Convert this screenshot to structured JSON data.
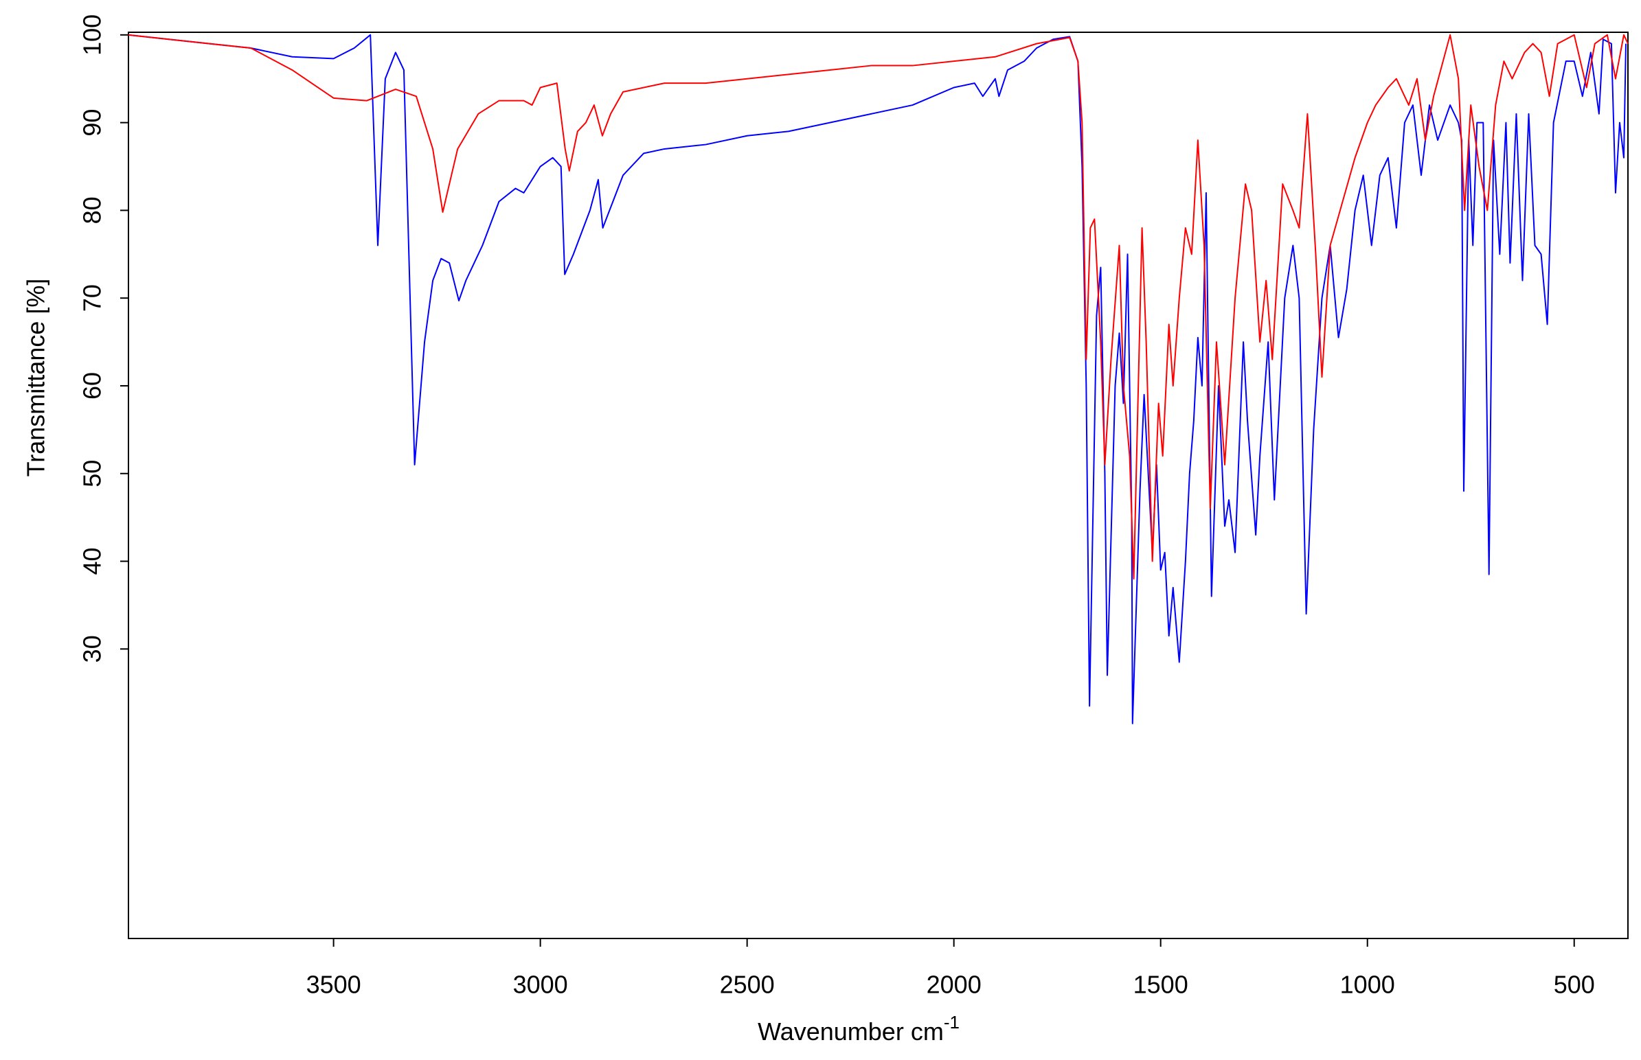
{
  "chart_data": {
    "type": "line",
    "x_label": "Wavenumber cm",
    "x_label_superscript": "-1",
    "y_label": "Transmittance [%]",
    "xlim": [
      3996,
      370
    ],
    "xticks": [
      3500,
      3000,
      2500,
      2000,
      1500,
      1000,
      500
    ],
    "ylim": [
      -3,
      100.3
    ],
    "yticks": [
      30,
      40,
      50,
      60,
      70,
      80,
      90,
      100
    ],
    "series": [
      {
        "color": "#0000ff",
        "x": [
          3996,
          3800,
          3700,
          3600,
          3500,
          3450,
          3411,
          3393,
          3375,
          3350,
          3330,
          3304,
          3280,
          3260,
          3240,
          3220,
          3197,
          3180,
          3140,
          3100,
          3060,
          3040,
          3000,
          2970,
          2950,
          2941,
          2920,
          2880,
          2860,
          2849,
          2800,
          2750,
          2700,
          2600,
          2500,
          2400,
          2300,
          2200,
          2100,
          2000,
          1950,
          1930,
          1900,
          1891,
          1870,
          1830,
          1800,
          1760,
          1720,
          1700,
          1690,
          1680,
          1672,
          1655,
          1645,
          1635,
          1629,
          1610,
          1600,
          1590,
          1580,
          1570,
          1568,
          1550,
          1540,
          1530,
          1520,
          1510,
          1500,
          1490,
          1480,
          1470,
          1455,
          1440,
          1430,
          1420,
          1410,
          1400,
          1390,
          1377,
          1360,
          1345,
          1335,
          1320,
          1300,
          1290,
          1270,
          1260,
          1240,
          1225,
          1200,
          1180,
          1165,
          1148,
          1130,
          1110,
          1090,
          1070,
          1050,
          1030,
          1010,
          990,
          970,
          950,
          930,
          910,
          890,
          870,
          850,
          830,
          800,
          780,
          772,
          767,
          755,
          745,
          735,
          720,
          706,
          695,
          680,
          665,
          655,
          640,
          625,
          610,
          595,
          580,
          565,
          550,
          520,
          500,
          480,
          460,
          440,
          430,
          410,
          400,
          390,
          380,
          375
        ],
        "values": [
          100,
          99,
          98.5,
          97.5,
          97.3,
          98.5,
          100,
          76,
          95,
          98,
          96,
          51,
          65,
          72,
          74.5,
          74,
          69.7,
          72,
          76,
          81,
          82.5,
          82,
          85,
          86,
          85,
          72.7,
          75,
          80,
          83.5,
          78,
          84,
          86.5,
          87,
          87.5,
          88.5,
          89,
          90,
          91,
          92,
          94,
          94.5,
          93,
          95,
          93,
          96,
          97,
          98.5,
          99.5,
          99.8,
          97,
          85,
          60,
          23.5,
          68,
          73.5,
          50,
          27,
          60,
          66,
          58,
          75,
          45,
          21.5,
          48,
          59,
          50,
          41,
          51,
          39,
          41,
          31.5,
          37,
          28.5,
          40,
          50,
          56,
          65.5,
          60,
          82,
          36,
          60,
          44,
          47,
          41,
          65,
          56,
          43,
          52,
          65,
          47,
          70,
          76,
          70,
          34,
          55,
          70,
          76,
          65.5,
          71,
          80,
          84,
          76,
          84,
          86,
          78,
          90,
          92,
          84,
          92,
          88,
          92,
          90,
          88,
          48,
          88,
          76,
          90,
          90,
          38.5,
          88,
          75,
          90,
          74,
          91,
          72,
          91,
          76,
          75,
          67,
          90,
          97,
          97,
          93,
          98,
          91,
          99.5,
          99,
          82,
          90,
          86,
          99
        ]
      },
      {
        "color": "#ff0000",
        "x": [
          3996,
          3800,
          3700,
          3600,
          3500,
          3420,
          3350,
          3300,
          3260,
          3236,
          3200,
          3150,
          3100,
          3040,
          3020,
          3000,
          2960,
          2940,
          2930,
          2910,
          2890,
          2870,
          2850,
          2830,
          2800,
          2700,
          2600,
          2500,
          2400,
          2300,
          2200,
          2100,
          2000,
          1900,
          1800,
          1720,
          1700,
          1690,
          1680,
          1670,
          1660,
          1645,
          1635,
          1620,
          1600,
          1590,
          1575,
          1565,
          1545,
          1535,
          1520,
          1505,
          1495,
          1480,
          1470,
          1455,
          1440,
          1425,
          1410,
          1395,
          1380,
          1365,
          1345,
          1320,
          1295,
          1280,
          1260,
          1245,
          1230,
          1205,
          1180,
          1165,
          1145,
          1125,
          1110,
          1090,
          1060,
          1030,
          1000,
          980,
          950,
          930,
          900,
          880,
          860,
          840,
          800,
          780,
          765,
          750,
          730,
          710,
          690,
          670,
          650,
          620,
          600,
          580,
          560,
          540,
          500,
          470,
          450,
          420,
          400,
          380,
          370
        ],
        "values": [
          100,
          99,
          98.5,
          96,
          92.8,
          92.5,
          93.8,
          93,
          87,
          79.8,
          87,
          91,
          92.5,
          92.5,
          92,
          94,
          94.5,
          87,
          84.5,
          89,
          90,
          92,
          88.5,
          91,
          93.5,
          94.5,
          94.5,
          95,
          95.5,
          96,
          96.5,
          96.5,
          97,
          97.5,
          99,
          99.7,
          97,
          90,
          63,
          78,
          79,
          65,
          51,
          63,
          76,
          60,
          52,
          38,
          78,
          65,
          40,
          58,
          52,
          67,
          60,
          70,
          78,
          75,
          88,
          76,
          46,
          65,
          51,
          70,
          83,
          80,
          65,
          72,
          63,
          83,
          80,
          78,
          91,
          75,
          61,
          76,
          81,
          86,
          90,
          92,
          94,
          95,
          92,
          95,
          88,
          93,
          100,
          95,
          80,
          92,
          85,
          80,
          92,
          97,
          95,
          98,
          99,
          98,
          93,
          99,
          100,
          94,
          99,
          100,
          95,
          100,
          99
        ]
      }
    ]
  }
}
